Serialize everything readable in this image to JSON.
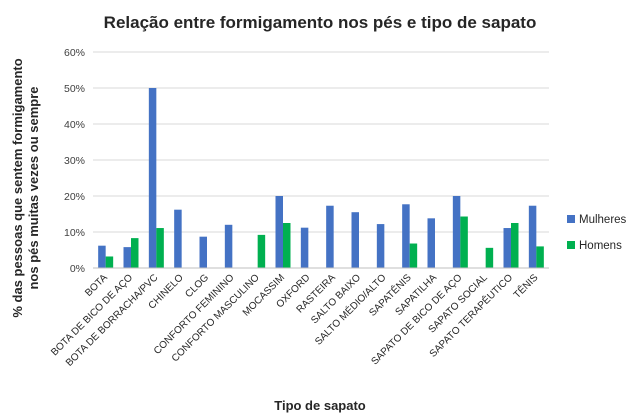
{
  "chart_data": {
    "type": "bar",
    "title": "Relação entre formigamento nos pés e tipo de sapato",
    "xlabel": "Tipo de sapato",
    "ylabel_lines": [
      "% das pessoas que sentem formigamento",
      "nos pés muitas vezes ou sempre"
    ],
    "ylim": [
      0,
      60
    ],
    "yticks": [
      "0%",
      "10%",
      "20%",
      "30%",
      "40%",
      "50%",
      "60%"
    ],
    "grid": true,
    "legend_position": "right",
    "categories": [
      "BOTA",
      "BOTA DE BICO DE AÇO",
      "BOTA DE BORRACHA/PVC",
      "CHINELO",
      "CLOG",
      "CONFORTO FEMININO",
      "CONFORTO MASCULINO",
      "MOCASSIM",
      "OXFORD",
      "RASTEIRA",
      "SALTO BAIXO",
      "SALTO MÉDIO/ALTO",
      "SAPATÊNIS",
      "SAPATILHA",
      "SAPATO DE BICO DE AÇO",
      "SAPATO SOCIAL",
      "SAPATO TERAPÊUTICO",
      "TÊNIS"
    ],
    "series": [
      {
        "name": "Mulheres",
        "color": "#4472C4",
        "values": [
          6.2,
          5.8,
          50.0,
          16.2,
          8.7,
          12.0,
          null,
          20.0,
          11.2,
          17.3,
          15.5,
          12.2,
          17.7,
          13.8,
          20.0,
          null,
          11.1,
          17.3
        ]
      },
      {
        "name": "Homens",
        "color": "#00B050",
        "values": [
          3.2,
          8.3,
          11.1,
          null,
          null,
          null,
          9.2,
          12.5,
          null,
          null,
          null,
          null,
          6.8,
          null,
          14.3,
          5.6,
          12.5,
          6.0
        ]
      }
    ]
  }
}
